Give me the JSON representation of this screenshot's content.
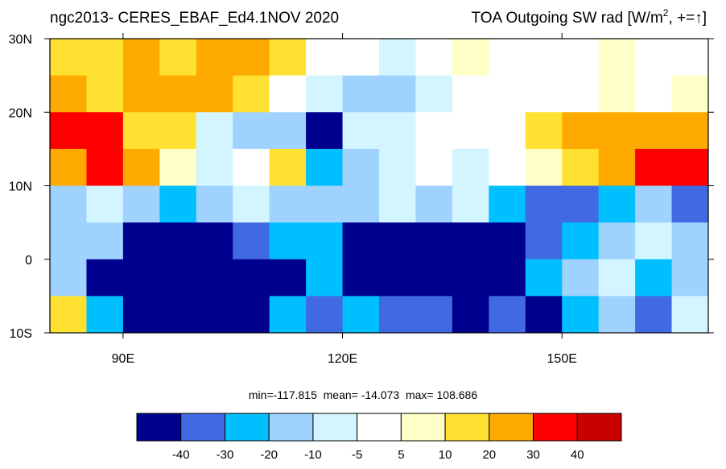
{
  "map": {
    "title_left": "ngc2013- CERES_EBAF_Ed4.1NOV 2020",
    "title_right": [
      "TOA Outgoing SW rad [W/m",
      "2",
      ", +=↑]"
    ],
    "xlim": [
      80,
      170
    ],
    "ylim": [
      -10,
      30
    ],
    "xticks": [
      {
        "value": 90,
        "label": "90E"
      },
      {
        "value": 120,
        "label": "120E"
      },
      {
        "value": 150,
        "label": "150E"
      }
    ],
    "yticks": [
      {
        "value": 30,
        "label": "30N"
      },
      {
        "value": 20,
        "label": "20N"
      },
      {
        "value": 10,
        "label": "10N"
      },
      0,
      {
        "value": -10,
        "label": "10S"
      }
    ],
    "field": [
      [
        10,
        15,
        20,
        15,
        25,
        20,
        10,
        -5,
        0,
        -10,
        0,
        5,
        0,
        0,
        0,
        5,
        0,
        0
      ],
      [
        20,
        15,
        25,
        20,
        25,
        15,
        0,
        -10,
        -20,
        -20,
        -10,
        -5,
        0,
        -5,
        0,
        5,
        0,
        5
      ],
      [
        30,
        35,
        15,
        10,
        -10,
        -20,
        -20,
        -45,
        -10,
        -10,
        0,
        0,
        0,
        15,
        20,
        20,
        20,
        20
      ],
      [
        25,
        30,
        20,
        5,
        -10,
        0,
        10,
        -30,
        -20,
        -10,
        -5,
        -10,
        0,
        5,
        15,
        20,
        30,
        35
      ],
      [
        -20,
        -10,
        -20,
        -30,
        -20,
        -10,
        -20,
        -15,
        -20,
        -10,
        -20,
        -10,
        -30,
        -40,
        -40,
        -30,
        -20,
        -40
      ],
      [
        -20,
        -20,
        -45,
        -50,
        -50,
        -40,
        -30,
        -30,
        -45,
        -50,
        -50,
        -50,
        -50,
        -40,
        -30,
        -20,
        -10,
        -20
      ],
      [
        -20,
        -45,
        -50,
        -50,
        -50,
        -50,
        -45,
        -30,
        -50,
        -50,
        -50,
        -50,
        -45,
        -30,
        -20,
        -10,
        -30,
        -20
      ],
      [
        15,
        -30,
        -50,
        -50,
        -50,
        -45,
        -30,
        -40,
        -30,
        -40,
        -40,
        -50,
        -40,
        -45,
        -30,
        -20,
        -40,
        -10
      ]
    ],
    "stats": "min=-117.815  mean= -14.073  max= 108.686",
    "levels": [
      -40,
      -30,
      -20,
      -10,
      -5,
      5,
      10,
      20,
      30,
      40
    ],
    "colors": [
      "#00008f",
      "#4169e1",
      "#00bfff",
      "#a0d2ff",
      "#d2f5ff",
      "#ffffff",
      "#ffffc8",
      "#ffe132",
      "#ffaa00",
      "#ff0000",
      "#c80000"
    ]
  }
}
